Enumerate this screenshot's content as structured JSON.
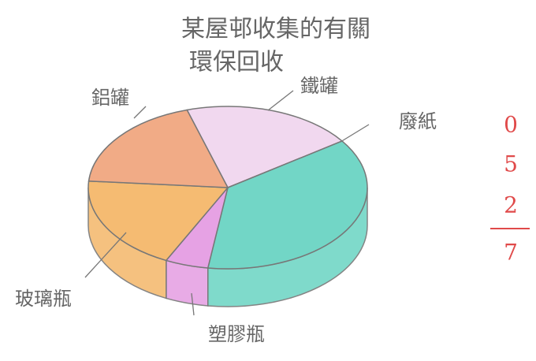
{
  "chart_data": {
    "type": "pie3d",
    "title": [
      "某屋邨收集的有關",
      "環保回收"
    ],
    "categories": [
      "鐵罐",
      "廢紙",
      "塑膠瓶",
      "玻璃瓶",
      "鋁罐"
    ],
    "values": [
      20,
      37,
      5,
      19,
      19
    ],
    "colors": [
      "#f1d8ef",
      "#72d6c6",
      "#e6a2e4",
      "#f5bb72",
      "#f1ab86"
    ],
    "annotations": [
      "0",
      "5",
      "2",
      "7"
    ]
  }
}
